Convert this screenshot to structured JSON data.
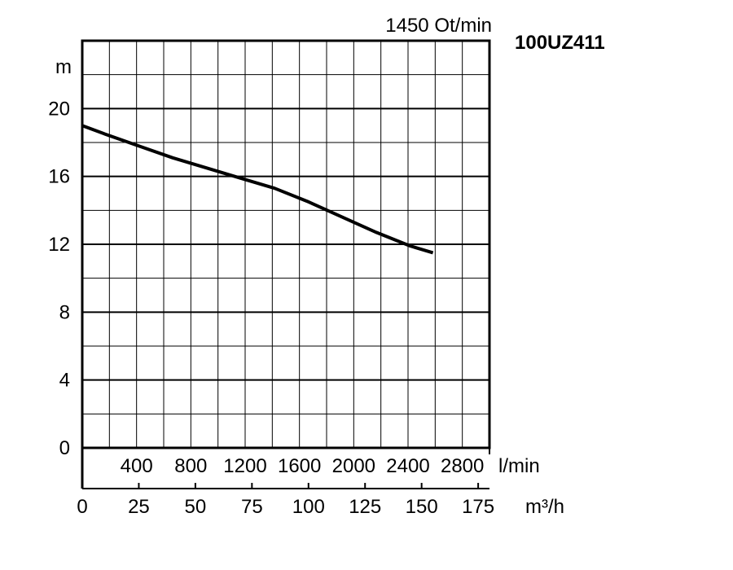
{
  "chart_data": {
    "type": "line",
    "model": "100UZ411",
    "speed": "1450 Ot/min",
    "ylabel": "m",
    "xlabel_flow_lmin": "l/min",
    "xlabel_flow_m3h": "m³/h",
    "y_ticks": [
      "0",
      "4",
      "8",
      "12",
      "16",
      "20"
    ],
    "lmin_ticks": [
      "400",
      "800",
      "1200",
      "1600",
      "2000",
      "2400",
      "2800"
    ],
    "m3h_ticks": [
      "0",
      "25",
      "50",
      "75",
      "100",
      "125",
      "150",
      "175"
    ],
    "xlim": [
      0,
      180
    ],
    "ylim": [
      0,
      24
    ],
    "grid": true,
    "series": [
      {
        "color": "#000000",
        "x": [
          0,
          10,
          25,
          40,
          55,
          70,
          85,
          100,
          115,
          130,
          145,
          155
        ],
        "y": [
          19.0,
          18.5,
          17.8,
          17.1,
          16.5,
          15.9,
          15.3,
          14.5,
          13.6,
          12.7,
          11.9,
          11.5
        ]
      }
    ]
  }
}
